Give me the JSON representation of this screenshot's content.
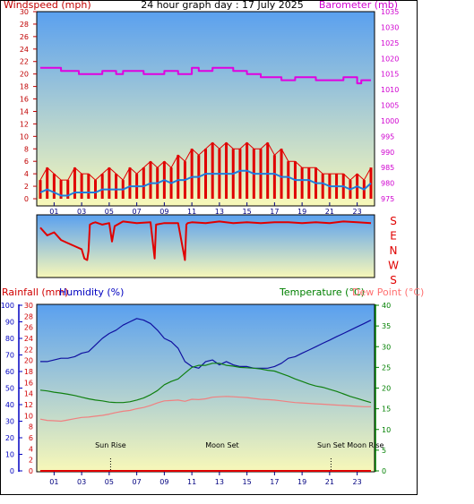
{
  "title": "24 hour graph day : 17 July 2025",
  "colors": {
    "wind": "#e00000",
    "gust_bar": "#e00000",
    "avg_wind": "#1e7ee0",
    "barometer": "#e000e0",
    "direction": "#e00000",
    "rainfall": "#e00000",
    "humidity": "#1010a0",
    "temperature": "#108010",
    "dewpoint": "#f08080",
    "axis_wind": "#c00000",
    "axis_baro": "#d000d0",
    "axis_rain": "#d00000",
    "axis_hum": "#0000c0",
    "axis_temp": "#008000",
    "axis_dew": "#ff7070",
    "x_ticks": "#000080",
    "bg_top": "#5aa0ef",
    "bg_bottom": "#f8f8b8"
  },
  "chart_data": [
    {
      "type": "line",
      "name": "wind-barometer",
      "x_unit": "hour",
      "xlim": [
        0,
        24
      ],
      "x_ticks": [
        "01",
        "03",
        "05",
        "07",
        "09",
        "11",
        "13",
        "15",
        "17",
        "19",
        "21",
        "23"
      ],
      "left_axis": {
        "label": "Windspeed (mph)",
        "ylim": [
          0,
          30
        ],
        "ticks": [
          0,
          2,
          4,
          6,
          8,
          10,
          12,
          14,
          16,
          18,
          20,
          22,
          24,
          26,
          28,
          30
        ]
      },
      "right_axis": {
        "label": "Barometer (mb)",
        "ylim": [
          975,
          1035
        ],
        "ticks": [
          975,
          980,
          985,
          990,
          995,
          1000,
          1005,
          1010,
          1015,
          1020,
          1025,
          1030,
          1035
        ]
      },
      "grid": false,
      "series": [
        {
          "name": "Gust",
          "axis": "left",
          "x": [
            0,
            0.5,
            1,
            1.5,
            2,
            2.5,
            3,
            3.5,
            4,
            4.5,
            5,
            5.5,
            6,
            6.5,
            7,
            7.5,
            8,
            8.5,
            9,
            9.5,
            10,
            10.5,
            11,
            11.5,
            12,
            12.5,
            13,
            13.5,
            14,
            14.5,
            15,
            15.5,
            16,
            16.5,
            17,
            17.5,
            18,
            18.5,
            19,
            19.5,
            20,
            20.5,
            21,
            21.5,
            22,
            22.5,
            23,
            23.5,
            24
          ],
          "values": [
            3,
            5,
            4,
            3,
            3,
            5,
            4,
            4,
            3,
            4,
            5,
            4,
            3,
            5,
            4,
            5,
            6,
            5,
            6,
            5,
            7,
            6,
            8,
            7,
            8,
            9,
            8,
            9,
            8,
            8,
            9,
            8,
            8,
            9,
            7,
            8,
            6,
            6,
            5,
            5,
            5,
            4,
            4,
            4,
            4,
            3,
            4,
            3,
            5
          ]
        },
        {
          "name": "Average",
          "axis": "left",
          "x": [
            0,
            0.5,
            1,
            1.5,
            2,
            2.5,
            3,
            3.5,
            4,
            4.5,
            5,
            5.5,
            6,
            6.5,
            7,
            7.5,
            8,
            8.5,
            9,
            9.5,
            10,
            10.5,
            11,
            11.5,
            12,
            12.5,
            13,
            13.5,
            14,
            14.5,
            15,
            15.5,
            16,
            16.5,
            17,
            17.5,
            18,
            18.5,
            19,
            19.5,
            20,
            20.5,
            21,
            21.5,
            22,
            22.5,
            23,
            23.5,
            24
          ],
          "values": [
            1,
            1.5,
            1,
            0.5,
            0.5,
            1,
            1,
            1,
            1,
            1.5,
            1.5,
            1.5,
            1.5,
            2,
            2,
            2,
            2.5,
            2.5,
            3,
            2.5,
            3,
            3,
            3.5,
            3.5,
            4,
            4,
            4,
            4,
            4,
            4.5,
            4.5,
            4,
            4,
            4,
            4,
            3.5,
            3.5,
            3,
            3,
            3,
            2.5,
            2.5,
            2,
            2,
            2,
            1.5,
            2,
            1.5,
            2.5
          ]
        },
        {
          "name": "Barometer",
          "axis": "right",
          "x": [
            0,
            1.5,
            1.5,
            2.8,
            2.8,
            4.5,
            4.5,
            5.5,
            5.5,
            6,
            6,
            7.5,
            7.5,
            9,
            9,
            10,
            10,
            11,
            11,
            11.5,
            11.5,
            12.5,
            12.5,
            14,
            14,
            15,
            15,
            16,
            16,
            17.5,
            17.5,
            18.5,
            18.5,
            20,
            20,
            22,
            22,
            23,
            23,
            23.3,
            23.3,
            24
          ],
          "values": [
            1017,
            1017,
            1016,
            1016,
            1015,
            1015,
            1016,
            1016,
            1015,
            1015,
            1016,
            1016,
            1015,
            1015,
            1016,
            1016,
            1015,
            1015,
            1017,
            1017,
            1016,
            1016,
            1017,
            1017,
            1016,
            1016,
            1015,
            1015,
            1014,
            1014,
            1013,
            1013,
            1014,
            1014,
            1013,
            1013,
            1014,
            1014,
            1012,
            1012,
            1013,
            1013
          ]
        }
      ]
    },
    {
      "type": "line",
      "name": "wind-direction",
      "x_unit": "hour",
      "xlim": [
        0,
        24
      ],
      "y_categories": [
        "S",
        "E",
        "N",
        "W",
        "S"
      ],
      "ylim": [
        0,
        360
      ],
      "series": [
        {
          "name": "Direction",
          "x": [
            0,
            0.5,
            1,
            1.5,
            2,
            2.5,
            3,
            3.2,
            3.4,
            3.5,
            3.6,
            3.8,
            4,
            4.5,
            5,
            5.2,
            5.4,
            6,
            7,
            8,
            8.3,
            8.4,
            9,
            10,
            10.5,
            10.6,
            10.7,
            11,
            12,
            13,
            14,
            15,
            16,
            17,
            18,
            19,
            20,
            21,
            22,
            23,
            24
          ],
          "values": [
            300,
            250,
            270,
            220,
            200,
            180,
            160,
            100,
            90,
            150,
            320,
            330,
            335,
            320,
            330,
            210,
            310,
            340,
            330,
            335,
            100,
            320,
            330,
            330,
            90,
            320,
            330,
            335,
            330,
            340,
            330,
            335,
            330,
            335,
            335,
            330,
            335,
            330,
            340,
            335,
            330
          ]
        }
      ]
    },
    {
      "type": "line",
      "name": "temperature-humidity-rain",
      "x_unit": "hour",
      "xlim": [
        0,
        24
      ],
      "x_ticks": [
        "01",
        "03",
        "05",
        "07",
        "09",
        "11",
        "13",
        "15",
        "17",
        "19",
        "21",
        "23"
      ],
      "axes": {
        "humidity": {
          "label": "Humidity (%)",
          "ylim": [
            0,
            100
          ],
          "ticks": [
            0,
            10,
            20,
            30,
            40,
            50,
            60,
            70,
            80,
            90,
            100
          ]
        },
        "rainfall": {
          "label": "Rainfall (mm)",
          "ylim": [
            0,
            30
          ],
          "ticks": [
            0,
            2,
            4,
            6,
            8,
            10,
            12,
            14,
            16,
            18,
            20,
            22,
            24,
            26,
            28,
            30
          ]
        },
        "temperature": {
          "label": "Temperature (°C)",
          "ylim": [
            0,
            40
          ],
          "ticks": [
            0,
            5,
            10,
            15,
            20,
            25,
            30,
            35,
            40
          ]
        },
        "dewpoint": {
          "label": "Dew Point (°C)"
        }
      },
      "annotations": [
        {
          "text": "Sun Rise",
          "hour": 5.1,
          "marker": true
        },
        {
          "text": "Moon Set",
          "hour": 13.2,
          "marker": false
        },
        {
          "text": "Sun Set",
          "hour": 21.1,
          "marker": true
        },
        {
          "text": "Moon Rise",
          "hour": 23.6,
          "marker": false
        }
      ],
      "series": [
        {
          "name": "Humidity",
          "axis": "humidity",
          "x": [
            0,
            0.5,
            1,
            1.5,
            2,
            2.5,
            3,
            3.5,
            4,
            4.5,
            5,
            5.5,
            6,
            6.5,
            7,
            7.5,
            8,
            8.5,
            9,
            9.5,
            10,
            10.5,
            11,
            11.5,
            12,
            12.5,
            13,
            13.5,
            14,
            14.5,
            15,
            15.5,
            16,
            16.5,
            17,
            17.5,
            18,
            18.5,
            19,
            19.5,
            20,
            20.5,
            21,
            21.5,
            22,
            22.5,
            23,
            23.5,
            24
          ],
          "values": [
            66,
            66,
            67,
            68,
            68,
            69,
            71,
            72,
            76,
            80,
            83,
            85,
            88,
            90,
            92,
            91,
            89,
            85,
            80,
            78,
            74,
            66,
            63,
            62,
            66,
            67,
            64,
            66,
            64,
            63,
            63,
            62,
            62,
            62,
            63,
            65,
            68,
            69,
            71,
            73,
            75,
            77,
            79,
            81,
            83,
            85,
            87,
            89,
            91
          ]
        },
        {
          "name": "Rainfall",
          "axis": "rainfall",
          "x": [
            0,
            24
          ],
          "values": [
            0,
            0
          ]
        },
        {
          "name": "Temperature",
          "axis": "temperature",
          "x": [
            0,
            0.5,
            1,
            1.5,
            2,
            2.5,
            3,
            3.5,
            4,
            4.5,
            5,
            5.5,
            6,
            6.5,
            7,
            7.5,
            8,
            8.5,
            9,
            9.5,
            10,
            10.5,
            11,
            11.5,
            12,
            12.5,
            13,
            13.5,
            14,
            14.5,
            15,
            15.5,
            16,
            16.5,
            17,
            17.5,
            18,
            18.5,
            19,
            19.5,
            20,
            20.5,
            21,
            21.5,
            22,
            22.5,
            23,
            23.5,
            24
          ],
          "values": [
            19.5,
            19.3,
            19,
            18.8,
            18.5,
            18.2,
            17.8,
            17.4,
            17.1,
            16.9,
            16.6,
            16.5,
            16.5,
            16.7,
            17.1,
            17.6,
            18.4,
            19.4,
            20.8,
            21.6,
            22.2,
            23.6,
            25,
            25.5,
            25.5,
            26,
            26,
            25.5,
            25.3,
            25,
            24.9,
            24.8,
            24.6,
            24.3,
            24.1,
            23.5,
            22.9,
            22.2,
            21.6,
            21,
            20.5,
            20.2,
            19.7,
            19.2,
            18.6,
            18,
            17.5,
            17,
            16.5
          ]
        },
        {
          "name": "Dew Point",
          "axis": "temperature",
          "x": [
            0,
            0.5,
            1,
            1.5,
            2,
            2.5,
            3,
            3.5,
            4,
            4.5,
            5,
            5.5,
            6,
            6.5,
            7,
            7.5,
            8,
            8.5,
            9,
            9.5,
            10,
            10.5,
            11,
            11.5,
            12,
            12.5,
            13,
            13.5,
            14,
            14.5,
            15,
            15.5,
            16,
            16.5,
            17,
            17.5,
            18,
            18.5,
            19,
            19.5,
            20,
            20.5,
            21,
            21.5,
            22,
            22.5,
            23,
            23.5,
            24
          ],
          "values": [
            12.5,
            12.2,
            12.1,
            12,
            12.3,
            12.6,
            12.9,
            13,
            13.2,
            13.4,
            13.7,
            14.1,
            14.4,
            14.6,
            15,
            15.3,
            15.8,
            16.4,
            16.9,
            17,
            17.1,
            16.8,
            17.3,
            17.2,
            17.4,
            17.8,
            17.9,
            18,
            17.9,
            17.8,
            17.7,
            17.5,
            17.3,
            17.2,
            17.1,
            16.9,
            16.7,
            16.5,
            16.4,
            16.3,
            16.2,
            16.1,
            16,
            15.9,
            15.8,
            15.7,
            15.6,
            15.5,
            15.5
          ]
        }
      ]
    }
  ]
}
